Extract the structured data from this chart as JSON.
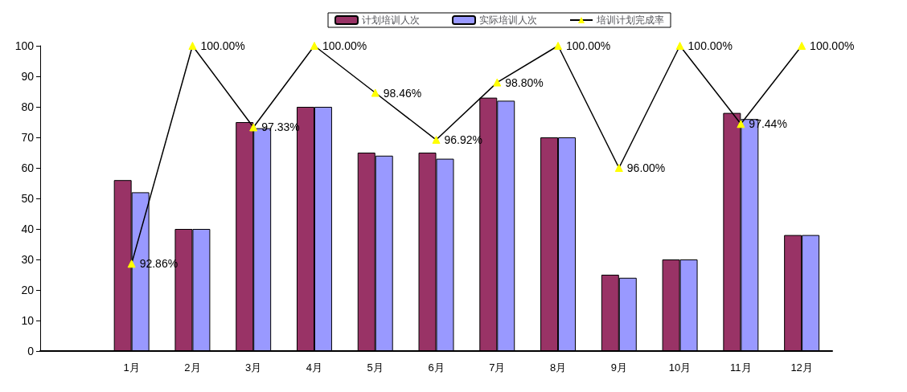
{
  "chart_data": {
    "type": "bar",
    "categories": [
      null,
      "1月",
      "2月",
      "3月",
      "4月",
      "5月",
      "6月",
      "7月",
      "8月",
      "9月",
      "10月",
      "11月",
      "12月"
    ],
    "series": [
      {
        "name": "计划培训人次",
        "color": "#993366",
        "values": [
          null,
          56,
          40,
          75,
          80,
          65,
          65,
          83,
          70,
          25,
          30,
          78,
          38
        ]
      },
      {
        "name": "实际培训人次",
        "color": "#9999ff",
        "values": [
          null,
          52,
          40,
          73,
          80,
          64,
          63,
          82,
          70,
          24,
          30,
          76,
          38
        ]
      },
      {
        "name": "培训计划完成率",
        "type": "line",
        "axis": "y2",
        "color": "#000000",
        "marker": "triangle",
        "values": [
          null,
          92.86,
          100,
          97.33,
          100,
          98.46,
          96.92,
          98.8,
          100,
          96,
          100,
          97.44,
          100
        ],
        "value_labels": [
          null,
          "92.86%",
          "100.00%",
          "97.33%",
          "100.00%",
          "98.46%",
          "96.92%",
          "98.80%",
          "100.00%",
          "96.00%",
          "100.00%",
          "97.44%",
          "100.00%"
        ]
      }
    ],
    "ylim": [
      0,
      100
    ],
    "yticks": [
      0,
      10,
      20,
      30,
      40,
      50,
      60,
      70,
      80,
      90,
      100
    ],
    "y2lim": [
      90,
      100
    ],
    "grid": false,
    "legend": "top"
  }
}
